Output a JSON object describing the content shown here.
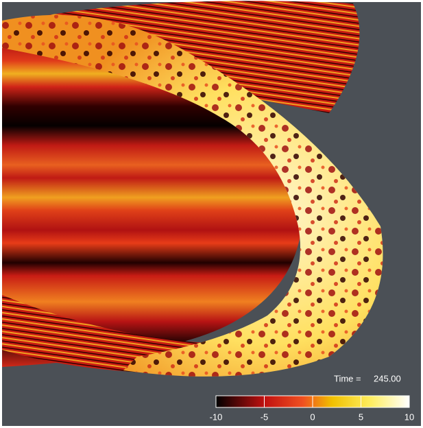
{
  "time_label": "Time =",
  "time_value": "245.00",
  "colorbar": {
    "lim": [
      -10,
      10
    ],
    "ticks": [
      -10,
      -5,
      0,
      5,
      10
    ]
  }
}
